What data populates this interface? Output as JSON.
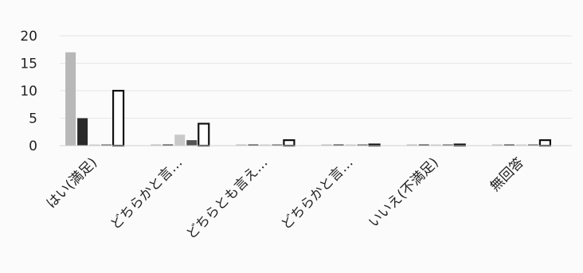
{
  "chart_data": {
    "type": "bar",
    "title": "",
    "xlabel": "",
    "ylabel": "",
    "ylim": [
      0,
      20
    ],
    "yticks": [
      0,
      5,
      10,
      15,
      20
    ],
    "grid": true,
    "legend": "none",
    "categories": [
      "はい(満足)",
      "どちらかと言…",
      "どちらとも言え…",
      "どちらかと言…",
      "いいえ(不満足)",
      "無回答"
    ],
    "series": [
      {
        "values": [
          17,
          0,
          0,
          0,
          0,
          0
        ],
        "color": "#b8b8b8"
      },
      {
        "values": [
          5,
          0,
          0,
          0,
          0,
          0
        ],
        "color": "#2a2a2a"
      },
      {
        "values": [
          0,
          2,
          0,
          0,
          0,
          0
        ],
        "color": "#c8c8c8"
      },
      {
        "values": [
          0,
          1,
          0,
          0,
          0,
          0
        ],
        "color": "#555555"
      },
      {
        "values": [
          10,
          4,
          1,
          0,
          0,
          1
        ],
        "color": "#ffffff",
        "stroke": "#111111"
      }
    ]
  }
}
